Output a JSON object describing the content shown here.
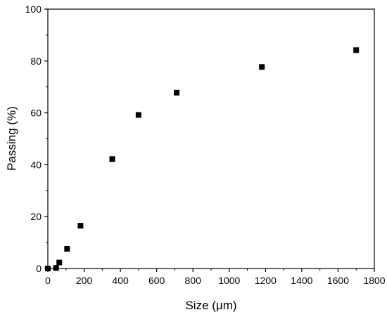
{
  "chart_data": {
    "type": "scatter",
    "xlabel": "Size (μm)",
    "ylabel": "Passing (%)",
    "xlim": [
      0,
      1800
    ],
    "ylim": [
      0,
      100
    ],
    "xticks": [
      0,
      200,
      400,
      600,
      800,
      1000,
      1200,
      1400,
      1600,
      1800
    ],
    "yticks": [
      0,
      20,
      40,
      60,
      80,
      100
    ],
    "grid": false,
    "legend": "none",
    "marker": "square",
    "marker_color": "#000000",
    "series": [
      {
        "points": [
          {
            "x": 0,
            "y": 0
          },
          {
            "x": 45,
            "y": 0.2
          },
          {
            "x": 63,
            "y": 2.3
          },
          {
            "x": 106,
            "y": 7.6
          },
          {
            "x": 180,
            "y": 16.5
          },
          {
            "x": 355,
            "y": 42.2
          },
          {
            "x": 500,
            "y": 59.2
          },
          {
            "x": 710,
            "y": 67.8
          },
          {
            "x": 1180,
            "y": 77.7
          },
          {
            "x": 1700,
            "y": 84.2
          }
        ]
      }
    ]
  }
}
